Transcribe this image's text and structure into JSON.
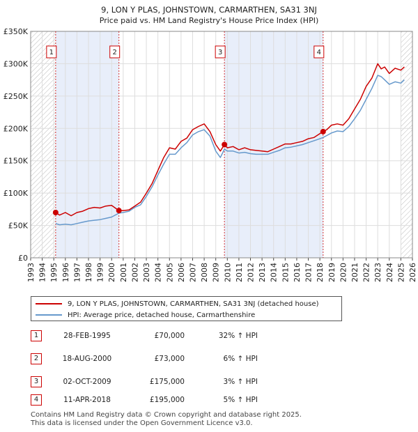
{
  "chart_data": {
    "type": "line",
    "title": "9, LON Y PLAS, JOHNSTOWN, CARMARTHEN, SA31 3NJ",
    "subtitle": "Price paid vs. HM Land Registry's House Price Index (HPI)",
    "xlabel": "",
    "ylabel": "",
    "xlim": [
      1993,
      2026
    ],
    "ylim": [
      0,
      350000
    ],
    "x_ticks": [
      "1993",
      "1994",
      "1995",
      "1996",
      "1997",
      "1998",
      "1999",
      "2000",
      "2001",
      "2002",
      "2003",
      "2004",
      "2005",
      "2006",
      "2007",
      "2008",
      "2009",
      "2010",
      "2011",
      "2012",
      "2013",
      "2014",
      "2015",
      "2016",
      "2017",
      "2018",
      "2019",
      "2020",
      "2021",
      "2022",
      "2023",
      "2024",
      "2025",
      "2026"
    ],
    "y_ticks": [
      {
        "value": 0,
        "label": "£0"
      },
      {
        "value": 50000,
        "label": "£50K"
      },
      {
        "value": 100000,
        "label": "£100K"
      },
      {
        "value": 150000,
        "label": "£150K"
      },
      {
        "value": 200000,
        "label": "£200K"
      },
      {
        "value": 250000,
        "label": "£250K"
      },
      {
        "value": 300000,
        "label": "£300K"
      },
      {
        "value": 350000,
        "label": "£350K"
      }
    ],
    "grid": true,
    "hatched_before": 1995.16,
    "hatched_after": 2025.0,
    "shaded_periods": [
      [
        1995.16,
        2000.63
      ],
      [
        2009.75,
        2018.28
      ]
    ],
    "series": [
      {
        "name": "9, LON Y PLAS, JOHNSTOWN, CARMARTHEN, SA31 3NJ (detached house)",
        "color": "#cc0000",
        "x": [
          1995.16,
          1995.5,
          1996.0,
          1996.5,
          1997.0,
          1997.5,
          1998.0,
          1998.5,
          1999.0,
          1999.5,
          2000.0,
          2000.63,
          2001.0,
          2001.5,
          2002.0,
          2002.5,
          2003.0,
          2003.5,
          2004.0,
          2004.5,
          2005.0,
          2005.5,
          2006.0,
          2006.5,
          2007.0,
          2007.5,
          2008.0,
          2008.5,
          2009.0,
          2009.4,
          2009.75,
          2010.0,
          2010.5,
          2011.0,
          2011.5,
          2012.0,
          2012.5,
          2013.0,
          2013.5,
          2014.0,
          2014.5,
          2015.0,
          2015.5,
          2016.0,
          2016.5,
          2017.0,
          2017.5,
          2018.0,
          2018.28,
          2018.6,
          2019.0,
          2019.5,
          2020.0,
          2020.5,
          2021.0,
          2021.5,
          2022.0,
          2022.5,
          2023.0,
          2023.3,
          2023.6,
          2024.0,
          2024.5,
          2025.0,
          2025.3
        ],
        "values": [
          70000,
          66000,
          70000,
          65000,
          70000,
          72000,
          76000,
          78000,
          77000,
          80000,
          81000,
          73000,
          73000,
          74000,
          80000,
          86000,
          100000,
          115000,
          135000,
          155000,
          170000,
          168000,
          180000,
          185000,
          198000,
          203000,
          207000,
          195000,
          175000,
          165000,
          175000,
          170000,
          172000,
          167000,
          170000,
          167000,
          166000,
          165000,
          164000,
          168000,
          172000,
          176000,
          176000,
          178000,
          180000,
          184000,
          186000,
          192000,
          195000,
          198000,
          205000,
          207000,
          205000,
          215000,
          230000,
          245000,
          265000,
          278000,
          300000,
          292000,
          295000,
          285000,
          293000,
          290000,
          295000
        ]
      },
      {
        "name": "HPI: Average price, detached house, Carmarthenshire",
        "color": "#6699cc",
        "x": [
          1995.16,
          1995.5,
          1996.0,
          1996.5,
          1997.0,
          1997.5,
          1998.0,
          1998.5,
          1999.0,
          1999.5,
          2000.0,
          2000.63,
          2001.0,
          2001.5,
          2002.0,
          2002.5,
          2003.0,
          2003.5,
          2004.0,
          2004.5,
          2005.0,
          2005.5,
          2006.0,
          2006.5,
          2007.0,
          2007.5,
          2008.0,
          2008.5,
          2009.0,
          2009.4,
          2009.75,
          2010.0,
          2010.5,
          2011.0,
          2011.5,
          2012.0,
          2012.5,
          2013.0,
          2013.5,
          2014.0,
          2014.5,
          2015.0,
          2015.5,
          2016.0,
          2016.5,
          2017.0,
          2017.5,
          2018.0,
          2018.28,
          2018.6,
          2019.0,
          2019.5,
          2020.0,
          2020.5,
          2021.0,
          2021.5,
          2022.0,
          2022.5,
          2023.0,
          2023.3,
          2023.6,
          2024.0,
          2024.5,
          2025.0,
          2025.3
        ],
        "values": [
          53000,
          51000,
          52000,
          51000,
          53000,
          55000,
          57000,
          58000,
          59000,
          61000,
          63000,
          69000,
          70000,
          72000,
          78000,
          82000,
          95000,
          110000,
          128000,
          145000,
          160000,
          160000,
          170000,
          178000,
          190000,
          195000,
          198000,
          188000,
          165000,
          155000,
          168000,
          165000,
          165000,
          162000,
          163000,
          161000,
          160000,
          160000,
          160000,
          163000,
          166000,
          170000,
          171000,
          173000,
          175000,
          178000,
          181000,
          184000,
          186000,
          189000,
          193000,
          196000,
          195000,
          203000,
          215000,
          228000,
          245000,
          262000,
          282000,
          280000,
          275000,
          268000,
          272000,
          270000,
          275000
        ]
      }
    ],
    "sales": [
      {
        "num": "1",
        "x": 1995.16,
        "value": 70000
      },
      {
        "num": "2",
        "x": 2000.63,
        "value": 73000
      },
      {
        "num": "3",
        "x": 2009.75,
        "value": 175000
      },
      {
        "num": "4",
        "x": 2018.28,
        "value": 195000
      }
    ]
  },
  "legend": {
    "property": "9, LON Y PLAS, JOHNSTOWN, CARMARTHEN, SA31 3NJ (detached house)",
    "hpi": "HPI: Average price, detached house, Carmarthenshire"
  },
  "transactions": [
    {
      "num": "1",
      "date": "28-FEB-1995",
      "price": "£70,000",
      "hpi": "32% ↑ HPI"
    },
    {
      "num": "2",
      "date": "18-AUG-2000",
      "price": "£73,000",
      "hpi": "6% ↑ HPI"
    },
    {
      "num": "3",
      "date": "02-OCT-2009",
      "price": "£175,000",
      "hpi": "3% ↑ HPI"
    },
    {
      "num": "4",
      "date": "11-APR-2018",
      "price": "£195,000",
      "hpi": "5% ↑ HPI"
    }
  ],
  "footer": {
    "line1": "Contains HM Land Registry data © Crown copyright and database right 2025.",
    "line2": "This data is licensed under the Open Government Licence v3.0."
  }
}
